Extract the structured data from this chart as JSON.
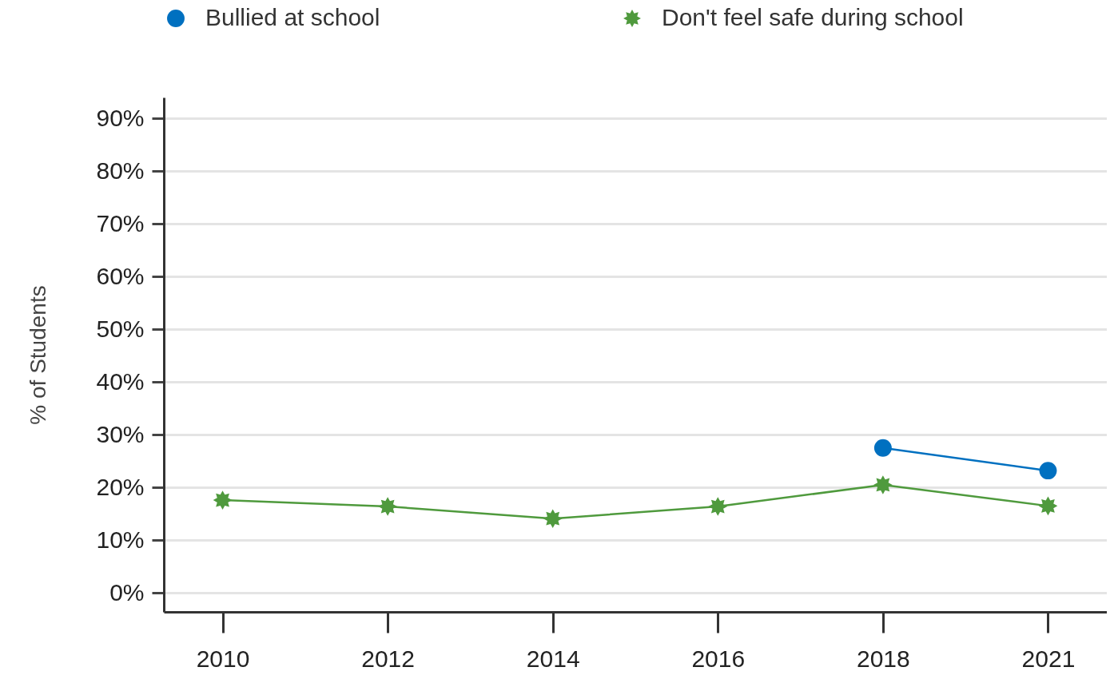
{
  "chart_data": {
    "type": "line",
    "categories": [
      "2010",
      "2012",
      "2014",
      "2016",
      "2018",
      "2021"
    ],
    "ylabel": "% of Students",
    "series": [
      {
        "name": "Bullied at school",
        "color": "#0070c0",
        "marker": "circle",
        "values": [
          null,
          null,
          null,
          null,
          27.5,
          23.2
        ]
      },
      {
        "name": "Don't feel safe during school",
        "color": "#4f9a3d",
        "marker": "star",
        "values": [
          17.6,
          16.4,
          14.1,
          16.4,
          20.5,
          16.5
        ]
      }
    ],
    "ylim": [
      -3.6,
      94
    ],
    "yticks": [
      {
        "value": 0,
        "label": "0%"
      },
      {
        "value": 10,
        "label": "10%"
      },
      {
        "value": 20,
        "label": "20%"
      },
      {
        "value": 30,
        "label": "30%"
      },
      {
        "value": 40,
        "label": "40%"
      },
      {
        "value": 50,
        "label": "50%"
      },
      {
        "value": 60,
        "label": "60%"
      },
      {
        "value": 70,
        "label": "70%"
      },
      {
        "value": 80,
        "label": "80%"
      },
      {
        "value": 90,
        "label": "90%"
      }
    ],
    "grid": "y",
    "legend": "top",
    "line_style": "solid"
  }
}
